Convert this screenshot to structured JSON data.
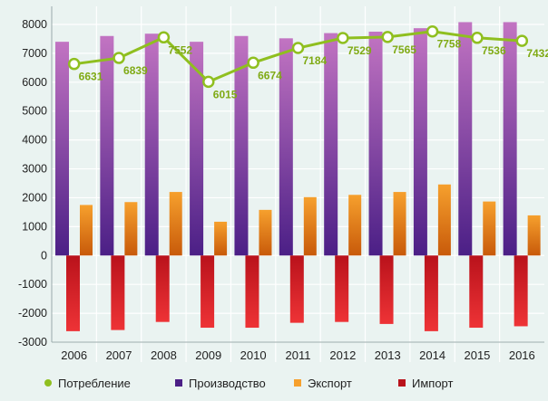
{
  "colors": {
    "background": "#eaf3f1",
    "grid": "#ffffff",
    "consumption": "#8fbf1f",
    "production_top": "#c274c2",
    "production_bottom": "#4b1f86",
    "export_top": "#f6a02d",
    "export_bottom": "#c85a0a",
    "import_top": "#b9121b",
    "import_bottom": "#ee3336",
    "label": "#7faa14"
  },
  "chart_data": {
    "type": "bar",
    "categories": [
      "2006",
      "2007",
      "2008",
      "2009",
      "2010",
      "2011",
      "2012",
      "2013",
      "2014",
      "2015",
      "2016"
    ],
    "ylim": [
      -3000,
      8000
    ],
    "yticks": [
      -3000,
      -2000,
      -1000,
      0,
      1000,
      2000,
      3000,
      4000,
      5000,
      6000,
      7000,
      8000
    ],
    "grid": true,
    "legend_position": "bottom",
    "series": [
      {
        "name": "Производство",
        "type": "bar",
        "values": [
          7400,
          7600,
          7680,
          7400,
          7600,
          7520,
          7700,
          7750,
          7870,
          8080,
          8080
        ]
      },
      {
        "name": "Экспорт",
        "type": "bar",
        "values": [
          1750,
          1850,
          2200,
          1170,
          1580,
          2020,
          2100,
          2200,
          2460,
          1870,
          1390
        ]
      },
      {
        "name": "Импорт",
        "type": "bar",
        "values": [
          -2620,
          -2580,
          -2300,
          -2500,
          -2500,
          -2330,
          -2300,
          -2370,
          -2620,
          -2500,
          -2450
        ]
      },
      {
        "name": "Потребление",
        "type": "line",
        "values": [
          6631,
          6839,
          7552,
          6015,
          6674,
          7184,
          7529,
          7565,
          7758,
          7536,
          7432
        ]
      }
    ],
    "data_labels": [
      "6631",
      "6839",
      "7552",
      "6015",
      "6674",
      "7184",
      "7529",
      "7565",
      "7758",
      "7536",
      "7432"
    ]
  },
  "legend": [
    {
      "key": "consumption",
      "label": "Потребление",
      "marker": "line-dot"
    },
    {
      "key": "production",
      "label": "Производство",
      "marker": "square"
    },
    {
      "key": "export",
      "label": "Экспорт",
      "marker": "square"
    },
    {
      "key": "import",
      "label": "Импорт",
      "marker": "square"
    }
  ]
}
